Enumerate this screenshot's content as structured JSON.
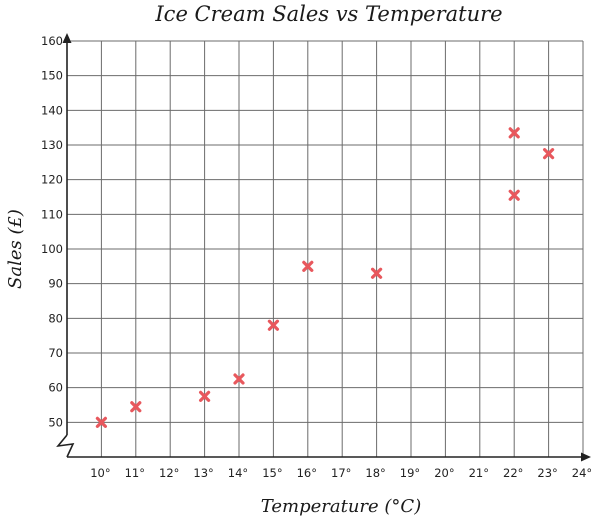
{
  "chart_data": {
    "type": "scatter",
    "title": "Ice Cream Sales vs Temperature",
    "xlabel": "Temperature (°C)",
    "ylabel": "Sales (£)",
    "xlim": [
      9,
      24
    ],
    "ylim": [
      40,
      160
    ],
    "y_axis_break": true,
    "grid": true,
    "legend": "none",
    "marker": "x",
    "x_ticks": [
      "10°",
      "11°",
      "12°",
      "13°",
      "14°",
      "15°",
      "16°",
      "17°",
      "18°",
      "19°",
      "20°",
      "21°",
      "22°",
      "23°",
      "24°"
    ],
    "y_ticks": [
      "50",
      "60",
      "70",
      "80",
      "90",
      "100",
      "110",
      "120",
      "130",
      "140",
      "150",
      "160"
    ],
    "points": [
      {
        "x": 10,
        "y": 50
      },
      {
        "x": 11,
        "y": 54.5
      },
      {
        "x": 13,
        "y": 57.5
      },
      {
        "x": 14,
        "y": 62.5
      },
      {
        "x": 15,
        "y": 78
      },
      {
        "x": 16,
        "y": 95
      },
      {
        "x": 18,
        "y": 93
      },
      {
        "x": 22,
        "y": 115.5
      },
      {
        "x": 22,
        "y": 133.5
      },
      {
        "x": 23,
        "y": 127.5
      }
    ],
    "colors": {
      "marker": "#e8585d",
      "grid": "#6b6b6b",
      "axis": "#222222"
    }
  }
}
